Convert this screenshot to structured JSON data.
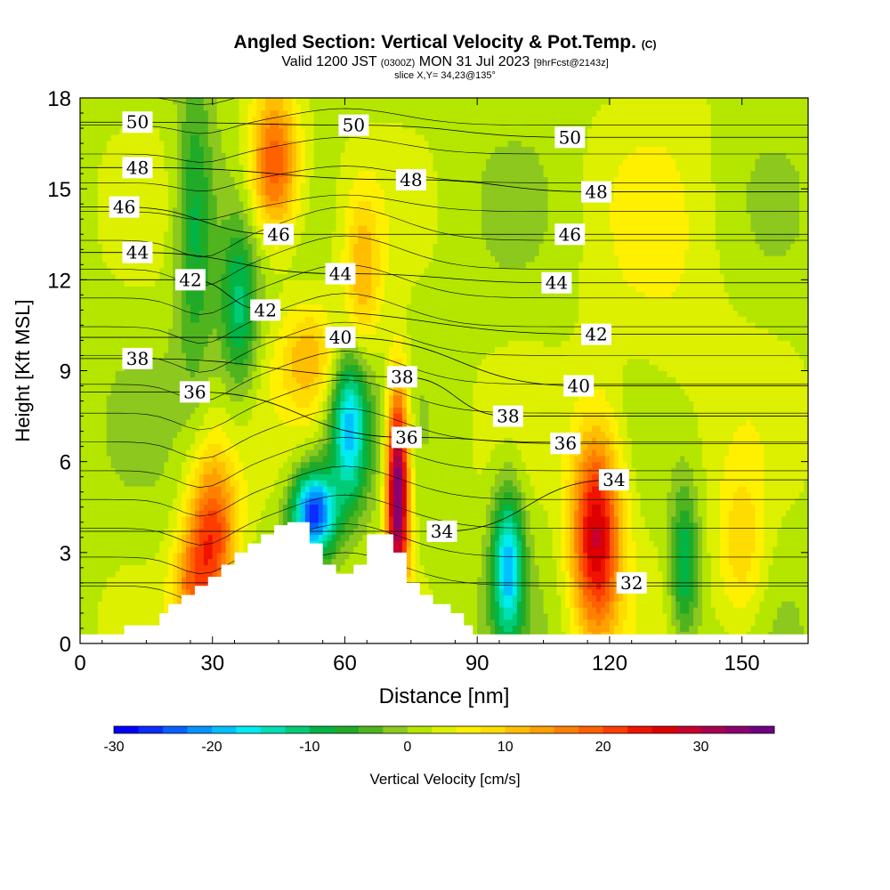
{
  "title": {
    "main": "Angled Section: Vertical Velocity & Pot.Temp.",
    "units": "(C)",
    "valid_prefix": "Valid 1200 JST",
    "valid_utc": "(0300Z)",
    "valid_date": "MON 31 Jul 2023",
    "forecast_info": "[9hrFcst@2143z]",
    "slice": "slice X,Y= 34,23@135°"
  },
  "chart_data": {
    "type": "heatmap",
    "xlabel": "Distance [nm]",
    "ylabel": "Height [Kft MSL]",
    "xlim": [
      0,
      165
    ],
    "ylim": [
      0,
      18
    ],
    "x_ticks": [
      "0",
      "30",
      "60",
      "90",
      "120",
      "150"
    ],
    "y_ticks": [
      "0",
      "3",
      "6",
      "9",
      "12",
      "15",
      "18"
    ],
    "colorbar": {
      "label": "Vertical Velocity [cm/s]",
      "range": [
        -30,
        37.5
      ],
      "tick_labels": [
        "-30",
        "-20",
        "-10",
        "0",
        "10",
        "20",
        "30"
      ],
      "colors": [
        "#0000ff",
        "#0a2cff",
        "#0860ff",
        "#0094ff",
        "#00c0ff",
        "#00ecf0",
        "#00e0b4",
        "#00cc78",
        "#00b446",
        "#20aa28",
        "#50b41e",
        "#8cc81e",
        "#b4e600",
        "#dcf000",
        "#fff000",
        "#ffdc00",
        "#ffbe00",
        "#ffa000",
        "#ff8000",
        "#ff6000",
        "#ff3c00",
        "#f01400",
        "#dc0000",
        "#c8002d",
        "#aa0050",
        "#8c006e",
        "#6e0082"
      ]
    },
    "terrain_kft": [
      [
        10,
        0.6
      ],
      [
        18,
        0.6
      ],
      [
        18,
        1
      ],
      [
        20,
        1
      ],
      [
        20,
        1.3
      ],
      [
        23,
        1.3
      ],
      [
        23,
        1.6
      ],
      [
        26,
        1.6
      ],
      [
        26,
        1.9
      ],
      [
        29,
        1.9
      ],
      [
        29,
        2.2
      ],
      [
        32,
        2.2
      ],
      [
        32,
        2.6
      ],
      [
        35,
        2.6
      ],
      [
        35,
        3.0
      ],
      [
        38,
        3.0
      ],
      [
        38,
        3.3
      ],
      [
        41,
        3.3
      ],
      [
        41,
        3.6
      ],
      [
        44,
        3.6
      ],
      [
        44,
        3.9
      ],
      [
        47,
        3.9
      ],
      [
        47,
        4.0
      ],
      [
        52,
        4.0
      ],
      [
        52,
        3.3
      ],
      [
        55,
        3.3
      ],
      [
        55,
        2.6
      ],
      [
        58,
        2.6
      ],
      [
        58,
        2.3
      ],
      [
        62,
        2.3
      ],
      [
        62,
        2.6
      ],
      [
        65,
        2.6
      ],
      [
        65,
        3.6
      ],
      [
        71,
        3.6
      ],
      [
        71,
        3.0
      ],
      [
        74,
        3.0
      ],
      [
        74,
        2.0
      ],
      [
        77,
        2.0
      ],
      [
        77,
        1.6
      ],
      [
        80,
        1.6
      ],
      [
        80,
        1.3
      ],
      [
        84,
        1.3
      ],
      [
        84,
        1.0
      ],
      [
        87,
        1.0
      ],
      [
        87,
        0.6
      ],
      [
        89,
        0.6
      ],
      [
        89,
        0.3
      ]
    ],
    "theta_contours_C": [
      {
        "value": 32,
        "label_x": 125,
        "label_y": 2.0
      },
      {
        "value": 34,
        "label_x": 82,
        "label_y": 3.7
      },
      {
        "value": 34,
        "label_x": 121,
        "label_y": 5.4
      },
      {
        "value": 36,
        "label_x": 26,
        "label_y": 8.3
      },
      {
        "value": 36,
        "label_x": 74,
        "label_y": 6.8
      },
      {
        "value": 36,
        "label_x": 110,
        "label_y": 6.6
      },
      {
        "value": 38,
        "label_x": 13,
        "label_y": 9.4
      },
      {
        "value": 38,
        "label_x": 73,
        "label_y": 8.8
      },
      {
        "value": 38,
        "label_x": 97,
        "label_y": 7.5
      },
      {
        "value": 40,
        "label_x": 59,
        "label_y": 10.1
      },
      {
        "value": 40,
        "label_x": 113,
        "label_y": 8.5
      },
      {
        "value": 42,
        "label_x": 25,
        "label_y": 12.0
      },
      {
        "value": 42,
        "label_x": 42,
        "label_y": 11.0
      },
      {
        "value": 42,
        "label_x": 117,
        "label_y": 10.2
      },
      {
        "value": 44,
        "label_x": 13,
        "label_y": 12.9
      },
      {
        "value": 44,
        "label_x": 59,
        "label_y": 12.2
      },
      {
        "value": 44,
        "label_x": 108,
        "label_y": 11.9
      },
      {
        "value": 46,
        "label_x": 10,
        "label_y": 14.4
      },
      {
        "value": 46,
        "label_x": 45,
        "label_y": 13.5
      },
      {
        "value": 46,
        "label_x": 111,
        "label_y": 13.5
      },
      {
        "value": 48,
        "label_x": 13,
        "label_y": 15.7
      },
      {
        "value": 48,
        "label_x": 75,
        "label_y": 15.3
      },
      {
        "value": 48,
        "label_x": 117,
        "label_y": 14.9
      },
      {
        "value": 50,
        "label_x": 13,
        "label_y": 17.2
      },
      {
        "value": 50,
        "label_x": 62,
        "label_y": 17.1
      },
      {
        "value": 50,
        "label_x": 111,
        "label_y": 16.7
      }
    ],
    "vertical_velocity_features": [
      {
        "x": 30,
        "y": 3.5,
        "wx": 4,
        "wy": 2.0,
        "value": 20
      },
      {
        "x": 25,
        "y": 1.8,
        "wx": 3,
        "wy": 1.3,
        "value": 10
      },
      {
        "x": 44,
        "y": 15.8,
        "wx": 4,
        "wy": 1.7,
        "value": 20
      },
      {
        "x": 64,
        "y": 12,
        "wx": 3,
        "wy": 2,
        "value": 10
      },
      {
        "x": 52,
        "y": 9.4,
        "wx": 5,
        "wy": 1.3,
        "value": 10
      },
      {
        "x": 72,
        "y": 5.0,
        "wx": 1.8,
        "wy": 2.5,
        "value": 36
      },
      {
        "x": 117,
        "y": 3.6,
        "wx": 4,
        "wy": 2.4,
        "value": 26
      },
      {
        "x": 53,
        "y": 4.3,
        "wx": 3.5,
        "wy": 1.0,
        "value": -28
      },
      {
        "x": 61,
        "y": 7.2,
        "wx": 3,
        "wy": 1.8,
        "value": -20
      },
      {
        "x": 97,
        "y": 2.6,
        "wx": 2.5,
        "wy": 1.8,
        "value": -20
      },
      {
        "x": 36,
        "y": 11,
        "wx": 3,
        "wy": 2,
        "value": -12
      },
      {
        "x": 26,
        "y": 13.8,
        "wx": 3,
        "wy": 3.5,
        "value": -10
      },
      {
        "x": 137,
        "y": 2.6,
        "wx": 2.3,
        "wy": 1.8,
        "value": -12
      },
      {
        "x": 150,
        "y": 3.0,
        "wx": 4,
        "wy": 2.0,
        "value": 8
      },
      {
        "x": 132,
        "y": 12,
        "wx": 12,
        "wy": 5,
        "value": 3
      }
    ]
  }
}
